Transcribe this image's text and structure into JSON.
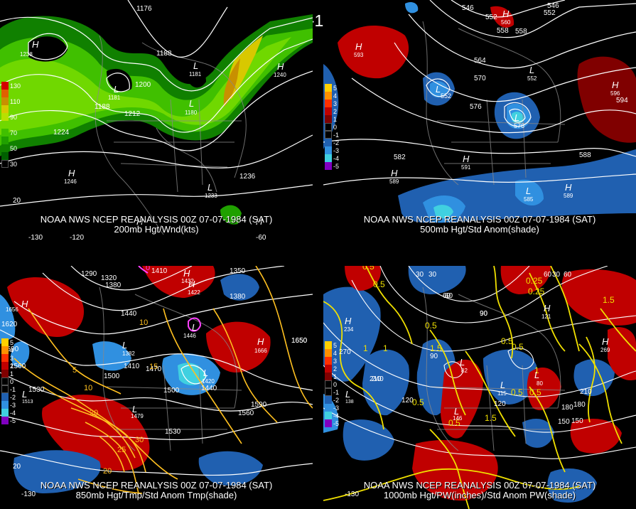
{
  "global_title": "00Z 07-07-1984 (SAT)",
  "panels": [
    {
      "id": "p1",
      "caption_line1": "NOAA NWS NCEP REANALYSIS 00Z 07-07-1984 (SAT)",
      "caption_line2": "200mb Hgt/Wnd(kts)",
      "legend": [
        {
          "label": "130",
          "color": "#d40000"
        },
        {
          "label": "",
          "color": "#e06000"
        },
        {
          "label": "110",
          "color": "#c89000"
        },
        {
          "label": "",
          "color": "#d8c800"
        },
        {
          "label": "90",
          "color": "#b8e000"
        },
        {
          "label": "",
          "color": "#70d800"
        },
        {
          "label": "70",
          "color": "#40c000"
        },
        {
          "label": "",
          "color": "#20a000"
        },
        {
          "label": "50",
          "color": "#108000"
        },
        {
          "label": "",
          "color": "#006000"
        },
        {
          "label": "30",
          "color": "#000000"
        }
      ],
      "contour_labels": [
        "1176",
        "1188",
        "1200",
        "1212",
        "1224",
        "1236",
        "1188",
        "1200"
      ],
      "centers": [
        {
          "letter": "H",
          "value": "1238"
        },
        {
          "letter": "L",
          "value": "1181"
        },
        {
          "letter": "L",
          "value": "1181"
        },
        {
          "letter": "L",
          "value": "1180"
        },
        {
          "letter": "H",
          "value": "1240"
        },
        {
          "letter": "H",
          "value": "1246"
        },
        {
          "letter": "L",
          "value": "1233"
        },
        {
          "letter": "H",
          "value": ""
        },
        {
          "letter": "H",
          "value": ""
        }
      ],
      "axis_labels": [
        "20",
        "-130",
        "-120",
        "-60"
      ]
    },
    {
      "id": "p2",
      "caption_line1": "NOAA NWS NCEP REANALYSIS 00Z 07-07-1984 (SAT)",
      "caption_line2": "500mb Hgt/Std Anom(shade)",
      "legend": [
        {
          "label": "5",
          "color": "#ffd000"
        },
        {
          "label": "4",
          "color": "#ff9000"
        },
        {
          "label": "3",
          "color": "#ff3000"
        },
        {
          "label": "2",
          "color": "#c00000"
        },
        {
          "label": "1",
          "color": "#800000"
        },
        {
          "label": "0",
          "color": "#000000"
        },
        {
          "label": "-1",
          "color": "#000000"
        },
        {
          "label": "-2",
          "color": "#2060b0"
        },
        {
          "label": "-3",
          "color": "#3090e0"
        },
        {
          "label": "-4",
          "color": "#40d0e0"
        },
        {
          "label": "-5",
          "color": "#8000c0"
        }
      ],
      "contour_labels": [
        "546",
        "552",
        "558",
        "564",
        "570",
        "576",
        "582",
        "588",
        "594",
        "546",
        "552",
        "558"
      ],
      "centers": [
        {
          "letter": "H",
          "value": "593"
        },
        {
          "letter": "L",
          "value": "552"
        },
        {
          "letter": "L",
          "value": "552"
        },
        {
          "letter": "L",
          "value": "576"
        },
        {
          "letter": "H",
          "value": "596"
        },
        {
          "letter": "H",
          "value": "591"
        },
        {
          "letter": "H",
          "value": "589"
        },
        {
          "letter": "L",
          "value": "585"
        },
        {
          "letter": "H",
          "value": "589"
        },
        {
          "letter": "H",
          "value": "560"
        }
      ]
    },
    {
      "id": "p3",
      "caption_line1": "NOAA NWS NCEP REANALYSIS 00Z 07-07-1984 (SAT)",
      "caption_line2": "850mb Hgt/Tmp/Std Anom Tmp(shade)",
      "legend": [
        {
          "label": "5",
          "color": "#ffd000"
        },
        {
          "label": "4",
          "color": "#ff9000"
        },
        {
          "label": "3",
          "color": "#ff3000"
        },
        {
          "label": "2",
          "color": "#c00000"
        },
        {
          "label": "1",
          "color": "#800000"
        },
        {
          "label": "0",
          "color": "#000000"
        },
        {
          "label": "-1",
          "color": "#000000"
        },
        {
          "label": "-2",
          "color": "#2060b0"
        },
        {
          "label": "-3",
          "color": "#3090e0"
        },
        {
          "label": "-4",
          "color": "#40d0e0"
        },
        {
          "label": "-5",
          "color": "#8000c0"
        }
      ],
      "contour_labels": [
        "1290",
        "1320",
        "1380",
        "1410",
        "1350",
        "1380",
        "1440",
        "1620",
        "1650",
        "1590",
        "1560",
        "1530",
        "1500",
        "1470",
        "1410",
        "1440",
        "1500",
        "1560",
        "1590",
        "1530",
        "1650"
      ],
      "temp_labels": [
        "0",
        "10",
        "5",
        "10",
        "15",
        "20",
        "25",
        "30",
        "20"
      ],
      "centers": [
        {
          "letter": "H",
          "value": "1656"
        },
        {
          "letter": "H",
          "value": "1432"
        },
        {
          "letter": "H",
          "value": "1666"
        },
        {
          "letter": "L",
          "value": "1382"
        },
        {
          "letter": "L",
          "value": "1446"
        },
        {
          "letter": "L",
          "value": "1420"
        },
        {
          "letter": "L",
          "value": "1479"
        },
        {
          "letter": "L",
          "value": "1513"
        },
        {
          "letter": "H",
          "value": "1422"
        }
      ],
      "axis_labels": [
        "20",
        "-130"
      ]
    },
    {
      "id": "p4",
      "caption_line1": "NOAA NWS NCEP REANALYSIS 00Z 07-07-1984 (SAT)",
      "caption_line2": "1000mb Hgt/PW(inches)/Std Anom PW(shade)",
      "legend": [
        {
          "label": "5",
          "color": "#ffd000"
        },
        {
          "label": "4",
          "color": "#ff9000"
        },
        {
          "label": "3",
          "color": "#ff3000"
        },
        {
          "label": "2",
          "color": "#c00000"
        },
        {
          "label": "1",
          "color": "#800000"
        },
        {
          "label": "0",
          "color": "#000000"
        },
        {
          "label": "-1",
          "color": "#000000"
        },
        {
          "label": "-2",
          "color": "#2060b0"
        },
        {
          "label": "-3",
          "color": "#3090e0"
        },
        {
          "label": "-4",
          "color": "#40d0e0"
        },
        {
          "label": "-5",
          "color": "#8000c0"
        }
      ],
      "contour_labels": [
        "30",
        "60",
        "90",
        "120",
        "150",
        "180",
        "210",
        "240",
        "270",
        "30",
        "60",
        "90",
        "120",
        "150",
        "180",
        "210",
        "60",
        "30",
        "60",
        "90"
      ],
      "pw_labels": [
        "0.5",
        "0.5",
        "1",
        "0.25",
        "0.25",
        "0.5",
        "1",
        "1.5",
        "0.5",
        "1",
        "0.5",
        "0.5",
        "1.5",
        "0.5",
        "1.5",
        "0.5",
        "0.5"
      ],
      "centers": [
        {
          "letter": "H",
          "value": "234"
        },
        {
          "letter": "H",
          "value": "269"
        },
        {
          "letter": "H",
          "value": "121"
        },
        {
          "letter": "L",
          "value": "82"
        },
        {
          "letter": "L",
          "value": "115"
        },
        {
          "letter": "L",
          "value": "80"
        },
        {
          "letter": "L",
          "value": "146"
        },
        {
          "letter": "L",
          "value": "138"
        }
      ],
      "axis_labels": [
        "-130"
      ]
    }
  ]
}
